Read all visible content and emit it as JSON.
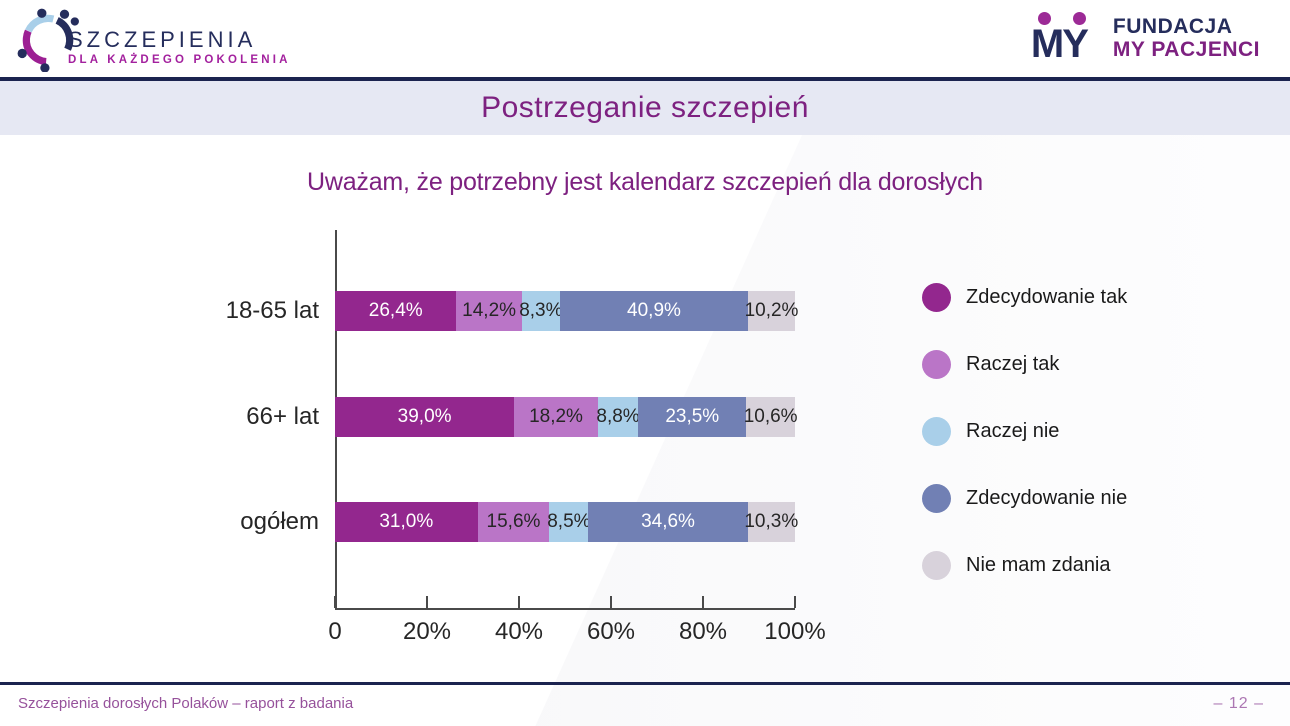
{
  "header": {
    "logo_left": {
      "line1": "SZCZEPIENIA",
      "line2": "DLA KAŻDEGO POKOLENIA"
    },
    "logo_right": {
      "monogram": "MY",
      "line1": "FUNDACJA",
      "line2": "MY PACJENCI"
    }
  },
  "title_bar": {
    "title": "Postrzeganie szczepień"
  },
  "chart_data": {
    "type": "bar",
    "orientation": "horizontal",
    "stacked": true,
    "title": "Uważam, że potrzebny jest kalendarz szczepień dla dorosłych",
    "categories": [
      "18-65 lat",
      "66+ lat",
      "ogółem"
    ],
    "series": [
      {
        "name": "Zdecydowanie tak",
        "color": "#93278E",
        "text_color": "#ffffff",
        "values": [
          26.4,
          39.0,
          31.0
        ],
        "labels": [
          "26,4%",
          "39,0%",
          "31,0%"
        ]
      },
      {
        "name": "Raczej tak",
        "color": "#BA75C7",
        "text_color": "#262626",
        "values": [
          14.2,
          18.2,
          15.6
        ],
        "labels": [
          "14,2%",
          "18,2%",
          "15,6%"
        ]
      },
      {
        "name": "Raczej nie",
        "color": "#A9CFE9",
        "text_color": "#262626",
        "values": [
          8.3,
          8.8,
          8.5
        ],
        "labels": [
          "8,3%",
          "8,8%",
          "8,5%"
        ]
      },
      {
        "name": "Zdecydowanie nie",
        "color": "#7180B4",
        "text_color": "#ffffff",
        "values": [
          40.9,
          23.5,
          34.6
        ],
        "labels": [
          "40,9%",
          "23,5%",
          "34,6%"
        ]
      },
      {
        "name": "Nie mam zdania",
        "color": "#D8D2DB",
        "text_color": "#262626",
        "values": [
          10.2,
          10.6,
          10.3
        ],
        "labels": [
          "10,2%",
          "10,6%",
          "10,3%"
        ]
      }
    ],
    "x_ticks": [
      "0",
      "20%",
      "40%",
      "60%",
      "80%",
      "100%"
    ],
    "xlim": [
      0,
      100
    ],
    "grid": false,
    "legend_position": "right"
  },
  "footer": {
    "left_text": "Szczepienia dorosłych Polaków – raport z badania",
    "page_number": "– 12 –"
  }
}
